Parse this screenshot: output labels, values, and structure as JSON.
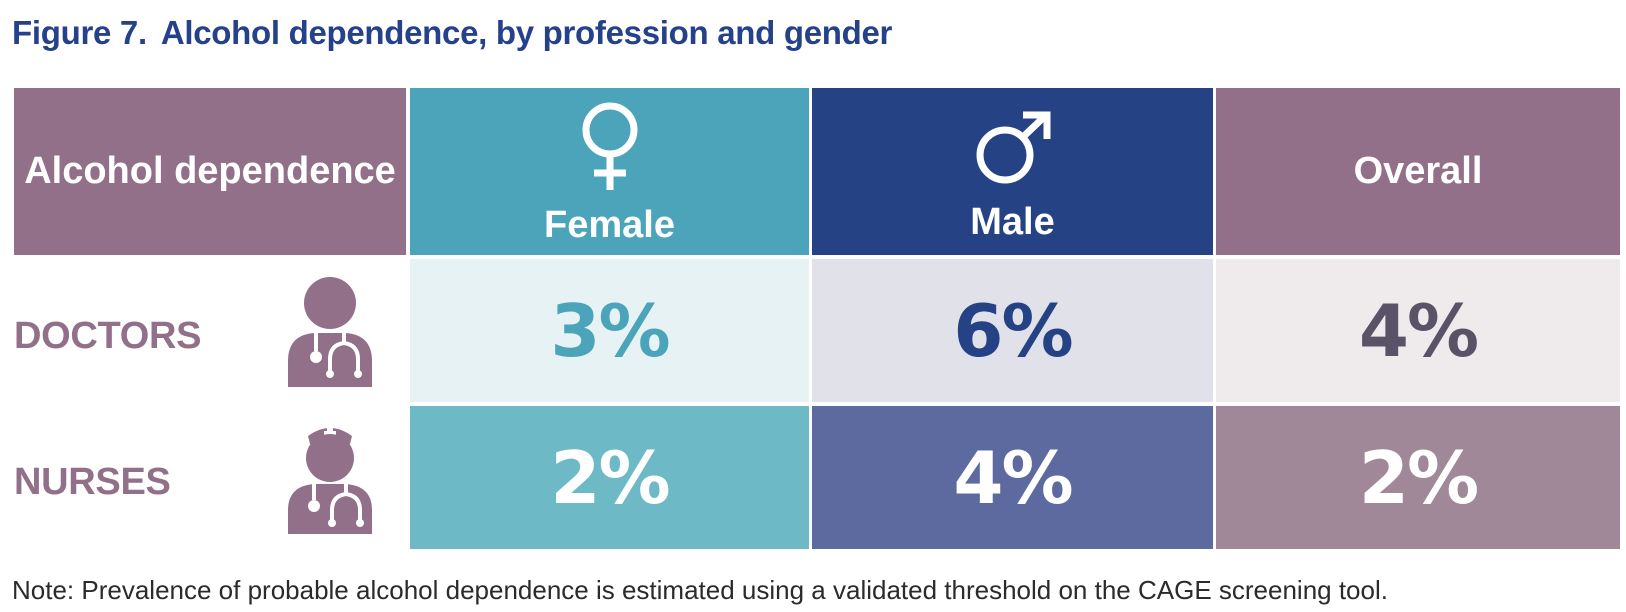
{
  "title": {
    "figure": "Figure 7.",
    "text": "Alcohol dependence, by profession and gender"
  },
  "note": "Note: Prevalence of probable alcohol dependence is estimated using a validated threshold on the CAGE screening tool.",
  "icons": {
    "female": "female-symbol-icon",
    "male": "male-symbol-icon",
    "doctor": "doctor-icon",
    "nurse": "nurse-icon"
  },
  "colors": {
    "purple": "#927089",
    "teal": "#4ba4b9",
    "navy": "#254285",
    "title": "#24418a",
    "female_doctor_bg": "#e6f2f3",
    "male_doctor_bg": "#e1e1ea",
    "overall_doctor_bg": "#efebed",
    "female_nurse_bg": "#6dbac6",
    "male_nurse_bg": "#5c6a9f",
    "overall_nurse_bg": "#a18898",
    "doctor_overall_text": "#5a5368"
  },
  "chart_data": {
    "type": "table",
    "title": "Alcohol dependence, by profession and gender",
    "header_label": "Alcohol dependence",
    "columns": [
      "Female",
      "Male",
      "Overall"
    ],
    "rows": [
      {
        "label": "DOCTORS",
        "values": [
          "3%",
          "6%",
          "4%"
        ]
      },
      {
        "label": "NURSES",
        "values": [
          "2%",
          "4%",
          "2%"
        ]
      }
    ],
    "unit": "%"
  }
}
